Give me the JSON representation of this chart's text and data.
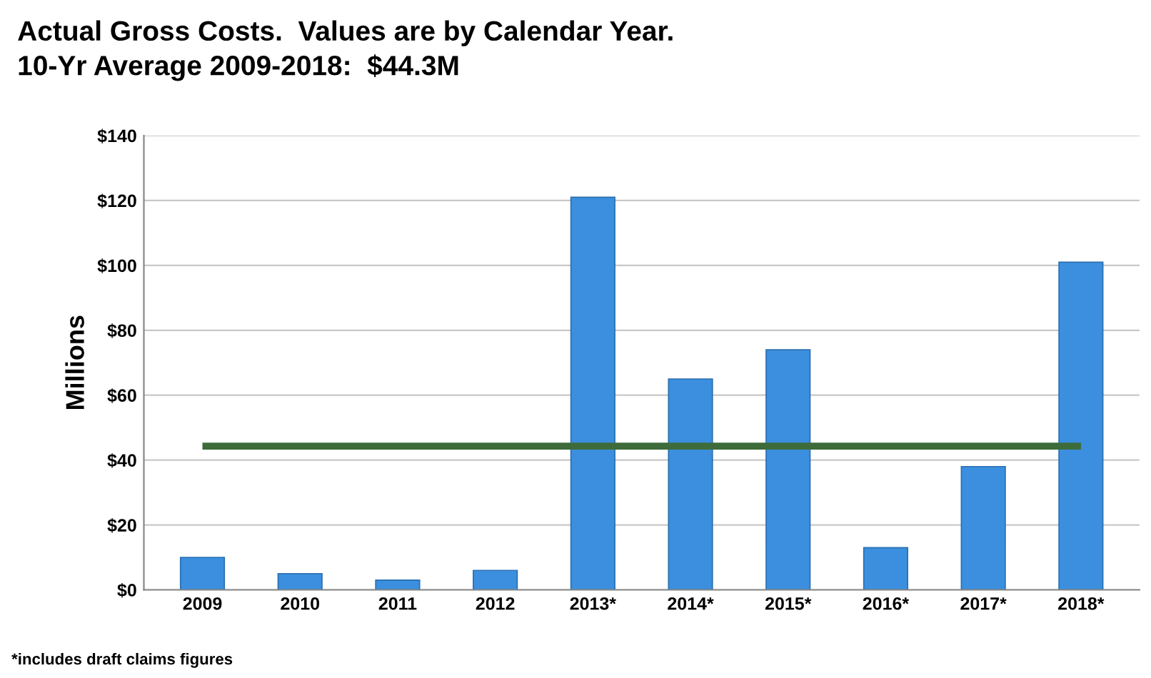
{
  "chart_data": {
    "type": "bar",
    "title": "Actual Gross Costs.  Values are by Calendar Year.\n10-Yr Average 2009-2018:  $44.3M",
    "ylabel": "Millions",
    "categories": [
      "2009",
      "2010",
      "2011",
      "2012",
      "2013*",
      "2014*",
      "2015*",
      "2016*",
      "2017*",
      "2018*"
    ],
    "values": [
      10,
      5,
      3,
      6,
      121,
      65,
      74,
      13,
      38,
      101
    ],
    "color": "#3b8fde",
    "ylim": [
      0,
      140
    ],
    "yticks": [
      {
        "value": 0,
        "label": "$0"
      },
      {
        "value": 20,
        "label": "$20"
      },
      {
        "value": 40,
        "label": "$40"
      },
      {
        "value": 60,
        "label": "$60"
      },
      {
        "value": 80,
        "label": "$80"
      },
      {
        "value": 100,
        "label": "$100"
      },
      {
        "value": 120,
        "label": "$120"
      },
      {
        "value": 140,
        "label": "$140"
      }
    ],
    "grid": "y",
    "legend": false,
    "ref_lines": [
      {
        "axis": "y",
        "value": 44.3,
        "label": null,
        "color": "#3d6b3a"
      }
    ],
    "annotations": [
      "*includes draft claims figures"
    ]
  }
}
